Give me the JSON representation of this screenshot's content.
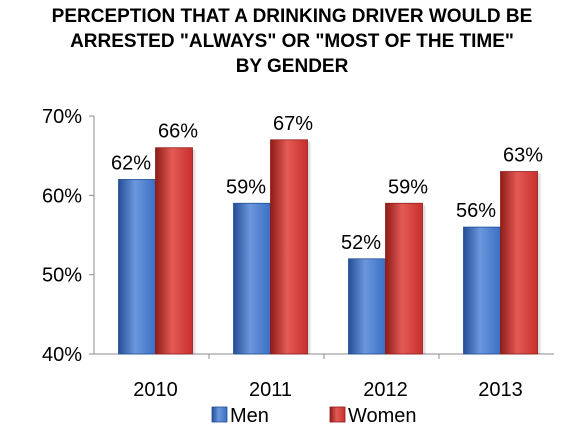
{
  "chart_data": {
    "type": "bar",
    "title_lines": [
      "PERCEPTION THAT A DRINKING DRIVER WOULD BE",
      "ARRESTED \"ALWAYS\" OR \"MOST OF THE TIME\"",
      "BY GENDER"
    ],
    "categories": [
      "2010",
      "2011",
      "2012",
      "2013"
    ],
    "series": [
      {
        "name": "Men",
        "values": [
          62,
          59,
          52,
          56
        ],
        "labels": [
          "62%",
          "59%",
          "52%",
          "56%"
        ],
        "color": "#3a6fc4",
        "color_light": "#6b97dd",
        "color_dark": "#244f96"
      },
      {
        "name": "Women",
        "values": [
          66,
          67,
          59,
          63
        ],
        "labels": [
          "66%",
          "67%",
          "59%",
          "63%"
        ],
        "color": "#c8302c",
        "color_light": "#e35a55",
        "color_dark": "#8f1c19"
      }
    ],
    "ylim": [
      40,
      70
    ],
    "yticks": [
      40,
      50,
      60,
      70
    ],
    "ytick_labels": [
      "40%",
      "50%",
      "60%",
      "70%"
    ],
    "legend_position": "bottom",
    "grid": false
  }
}
